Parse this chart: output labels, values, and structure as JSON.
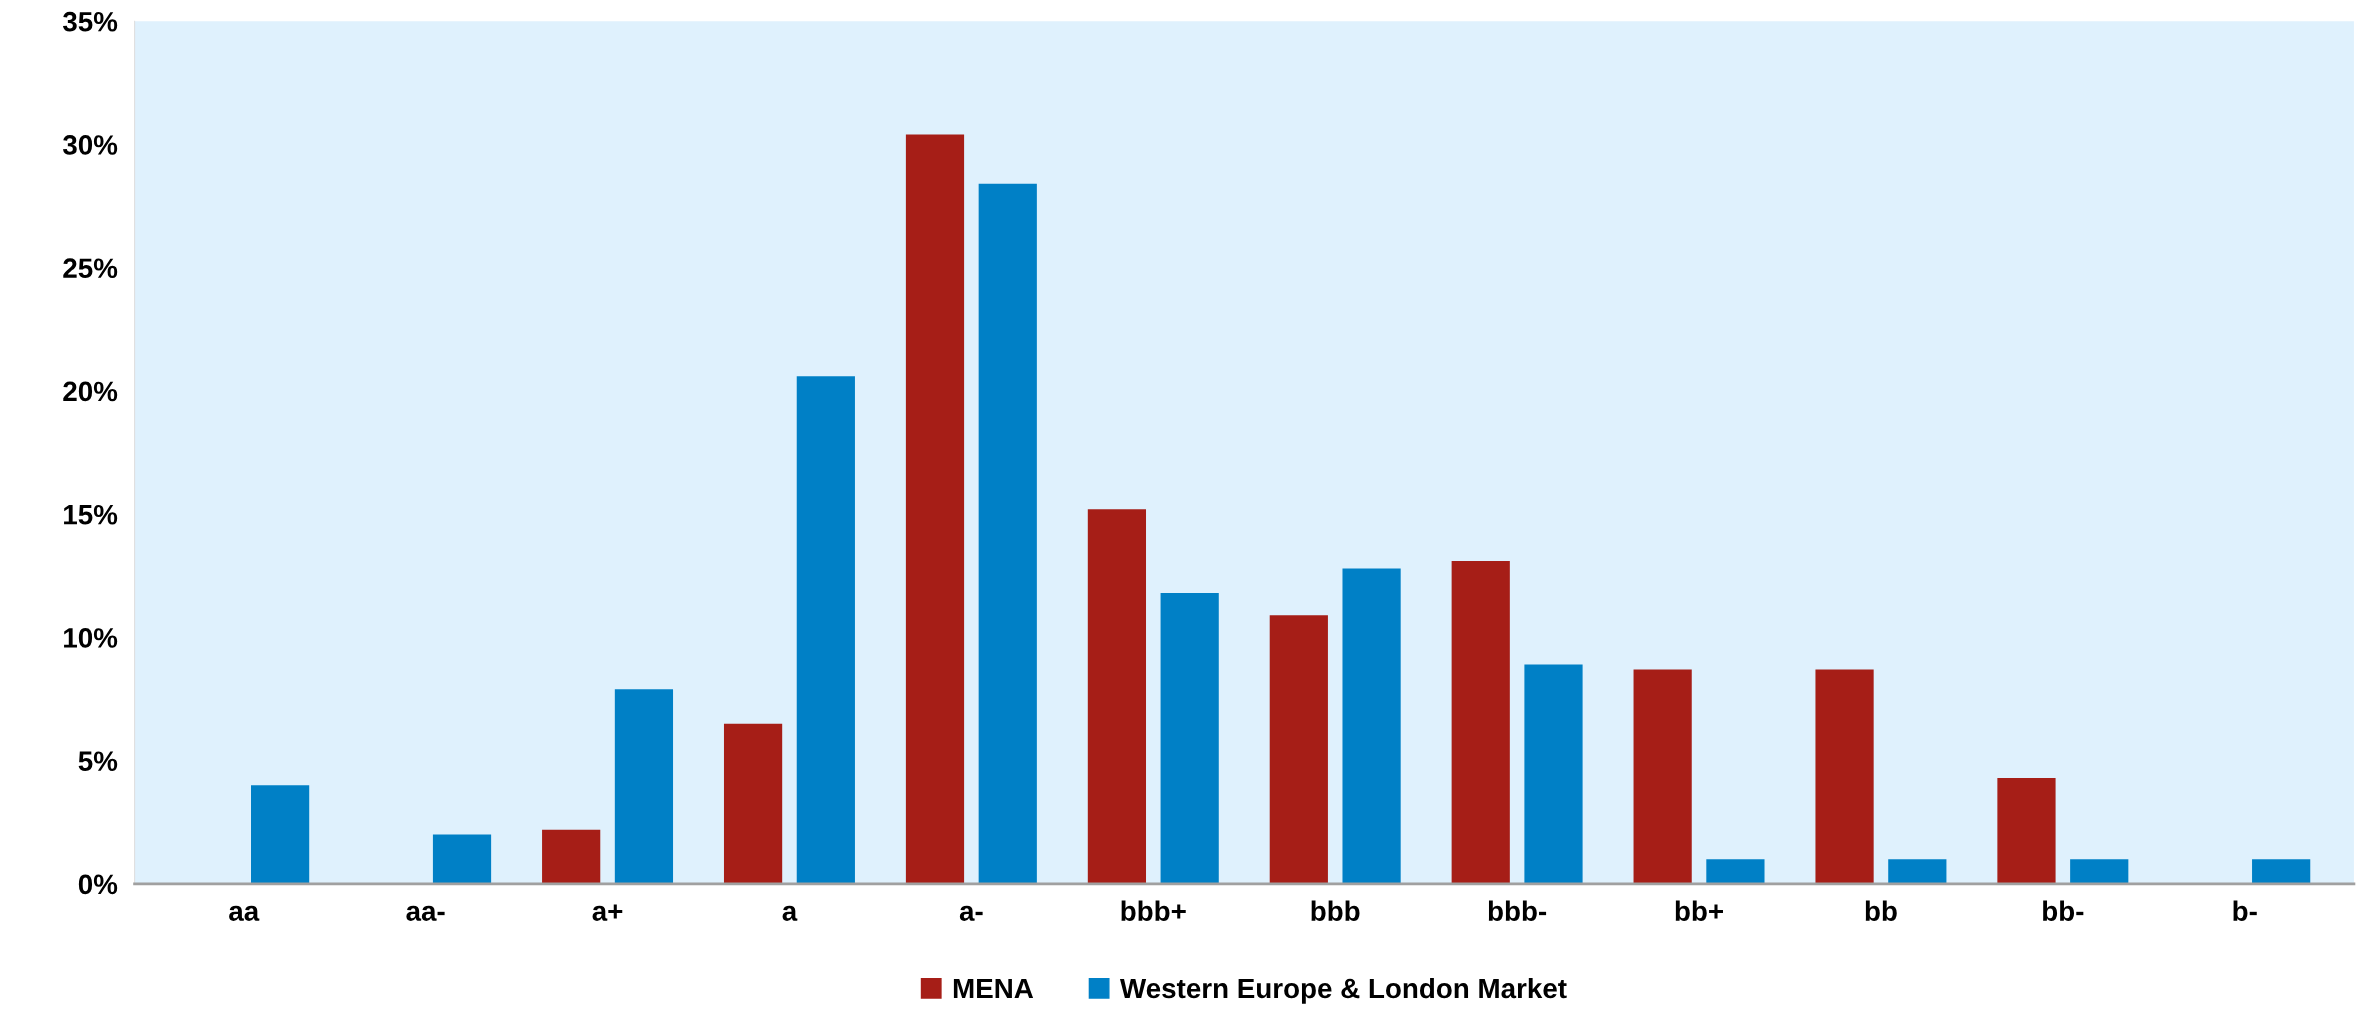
{
  "chart_data": {
    "type": "bar",
    "categories": [
      "aa",
      "aa-",
      "a+",
      "a",
      "a-",
      "bbb+",
      "bbb",
      "bbb-",
      "bb+",
      "bb",
      "bb-",
      "b-"
    ],
    "series": [
      {
        "name": "MENA",
        "color": "#a61e17",
        "values": [
          null,
          null,
          2.2,
          6.5,
          30.4,
          15.2,
          10.9,
          13.1,
          8.7,
          8.7,
          4.3,
          null
        ]
      },
      {
        "name": "Western Europe & London Market",
        "color": "#0080c6",
        "values": [
          4.0,
          2.0,
          7.9,
          20.6,
          28.4,
          11.8,
          12.8,
          8.9,
          1.0,
          1.0,
          1.0,
          1.0
        ]
      }
    ],
    "ylim": [
      0,
      35
    ],
    "yticks": [
      {
        "value": 0,
        "label": "0%"
      },
      {
        "value": 5,
        "label": "5%"
      },
      {
        "value": 10,
        "label": "10%"
      },
      {
        "value": 15,
        "label": "15%"
      },
      {
        "value": 20,
        "label": "20%"
      },
      {
        "value": 25,
        "label": "25%"
      },
      {
        "value": 30,
        "label": "30%"
      },
      {
        "value": 35,
        "label": "35%"
      }
    ],
    "grid": false,
    "legend": "bottom"
  }
}
